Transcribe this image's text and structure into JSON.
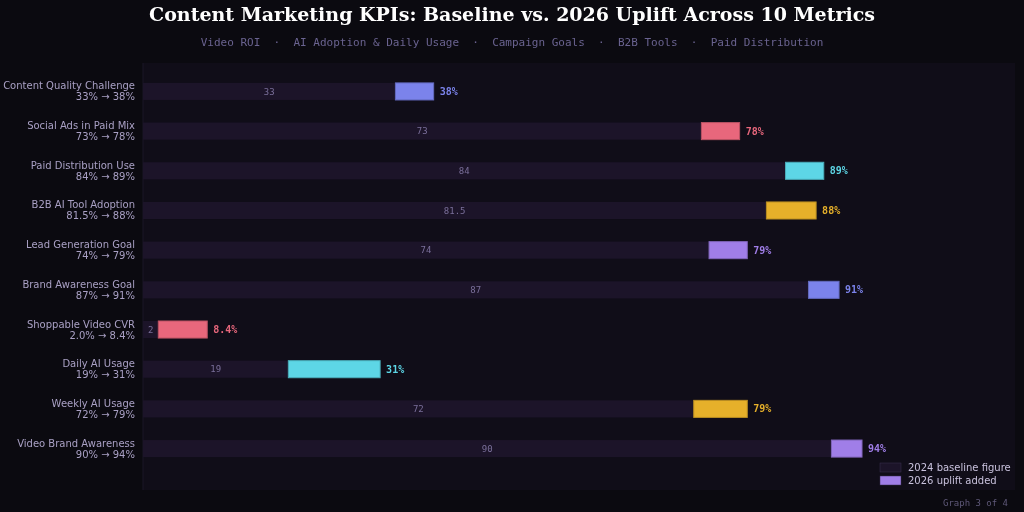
{
  "chart_data": {
    "type": "bar",
    "orientation": "horizontal",
    "stacked": true,
    "title": "Content Marketing KPIs: Baseline vs. 2026 Uplift Across 10 Metrics",
    "subtitle": "Video ROI  ·  AI Adoption & Daily Usage  ·  Campaign Goals  ·  B2B Tools  ·  Paid Distribution",
    "annotations": [
      "Graph 3 of 4",
      {
        "text": "38%",
        "x": 38,
        "y": "Content Quality Challenge\n33% → 38%"
      },
      {
        "text": "78%",
        "x": 78,
        "y": "Social Ads in Paid Mix\n73% → 78%"
      },
      {
        "text": "89%",
        "x": 89,
        "y": "Paid Distribution Use\n84% → 89%"
      },
      {
        "text": "88%",
        "x": 88,
        "y": "B2B AI Tool Adoption\n81.5% → 88%"
      },
      {
        "text": "79%",
        "x": 79,
        "y": "Lead Generation Goal\n74% → 79%"
      },
      {
        "text": "91%",
        "x": 91,
        "y": "Brand Awareness Goal\n87% → 91%"
      },
      {
        "text": "8.4%",
        "x": 8.4,
        "y": "Shoppable Video CVR\n2.0% → 8.4%"
      },
      {
        "text": "31%",
        "x": 31,
        "y": "Daily AI Usage\n19% → 31%"
      },
      {
        "text": "79%",
        "x": 79,
        "y": "Weekly AI Usage\n72% → 79%"
      },
      {
        "text": "94%",
        "x": 94,
        "y": "Video Brand Awareness\n90% → 94%"
      }
    ],
    "categories": [
      "Content Quality Challenge\n33% → 38%",
      "Social Ads in Paid Mix\n73% → 78%",
      "Paid Distribution Use\n84% → 89%",
      "B2B AI Tool Adoption\n81.5% → 88%",
      "Lead Generation Goal\n74% → 79%",
      "Brand Awareness Goal\n87% → 91%",
      "Shoppable Video CVR\n2.0% → 8.4%",
      "Daily AI Usage\n19% → 31%",
      "Weekly AI Usage\n72% → 79%",
      "Video Brand Awareness\n90% → 94%"
    ],
    "xlim": [
      0,
      114
    ],
    "legend": "bottom right",
    "series": [
      {
        "name": "2024 baseline figure",
        "color": "#1c1429",
        "values": [
          33,
          73,
          84,
          81.5,
          74,
          87,
          2.0,
          19,
          72,
          90
        ],
        "value_labels": [
          "33",
          "73",
          "84",
          "81.5",
          "74",
          "87",
          "2",
          "19",
          "72",
          "90"
        ]
      },
      {
        "name": "2026 uplift added",
        "color": "#a07ee8",
        "colors": [
          "#7b83eb",
          "#e8677c",
          "#5dd6e6",
          "#e6b02a",
          "#a07ee8",
          "#7b83eb",
          "#e8677c",
          "#5dd6e6",
          "#e6b02a",
          "#a07ee8"
        ],
        "values": [
          5,
          5,
          5,
          6.5,
          5,
          4,
          6.4,
          12,
          7,
          4
        ]
      }
    ]
  }
}
